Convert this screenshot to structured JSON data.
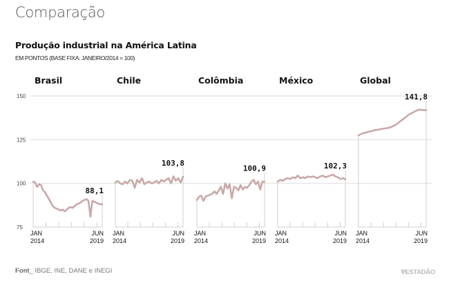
{
  "section_title": "Comparação",
  "chart_data": {
    "type": "line",
    "title": "Produção industrial na América Latina",
    "subtitle": "EM PONTOS (BASE FIXA: JANEIRO/2014 = 100)",
    "ylim": [
      75,
      150
    ],
    "yticks": [
      "75",
      "100",
      "125",
      "150"
    ],
    "ytick_values": [
      75,
      100,
      125,
      150
    ],
    "grid": true,
    "line_color": "#c9a8a8",
    "x_start_label": [
      "JAN",
      "2014"
    ],
    "x_end_label": [
      "JUN",
      "2019"
    ],
    "panels": [
      {
        "name": "Brasil",
        "last_value_label": "88,1",
        "values": [
          101,
          100.5,
          98,
          99.5,
          99,
          96,
          95,
          93,
          91,
          89,
          87,
          86,
          85.5,
          85,
          84.5,
          85,
          84,
          85,
          86,
          86.5,
          86,
          87,
          88,
          88.5,
          89,
          90,
          90.5,
          91,
          90,
          81,
          90,
          89.5,
          89,
          88.5,
          88,
          88.1
        ]
      },
      {
        "name": "Chile",
        "last_value_label": "103,8",
        "values": [
          100.5,
          101.5,
          100,
          99.5,
          101,
          100,
          102,
          101.5,
          97.5,
          102,
          100.5,
          103,
          99.5,
          100.5,
          101,
          100,
          100.5,
          101.5,
          100,
          102,
          101,
          102,
          103,
          100,
          104,
          101.5,
          103,
          100.5,
          103.8
        ]
      },
      {
        "name": "Colômbia",
        "last_value_label": "100,9",
        "values": [
          90.5,
          92.5,
          93,
          90,
          92.5,
          93,
          93.5,
          94,
          95.5,
          94,
          96,
          98,
          94,
          100,
          97,
          99.5,
          91.5,
          98,
          97.5,
          96,
          99,
          96.5,
          98,
          97.5,
          99,
          101,
          102,
          99.5,
          101,
          96.5,
          101,
          100.9
        ]
      },
      {
        "name": "México",
        "last_value_label": "102,3",
        "values": [
          101,
          102,
          101.5,
          102.5,
          103,
          102.5,
          103.5,
          103,
          104.5,
          103,
          103.5,
          103,
          104,
          103.5,
          104,
          103.5,
          103,
          104,
          104.5,
          103.5,
          104,
          104.5,
          105,
          104,
          103.5,
          102.5,
          103,
          102.3
        ]
      },
      {
        "name": "Global",
        "last_value_label": "141,8",
        "values": [
          127.5,
          128.5,
          129,
          129.5,
          130,
          130.5,
          130.8,
          131.2,
          131.5,
          131.8,
          132.5,
          133.5,
          135,
          136.5,
          138,
          139.5,
          140.5,
          141.5,
          142.2,
          142,
          141.8
        ]
      }
    ]
  },
  "footer": {
    "source_label": "Font",
    "source_text": "IBGE, INE, DANE e INEGI",
    "brand": "ESTADÃO"
  }
}
